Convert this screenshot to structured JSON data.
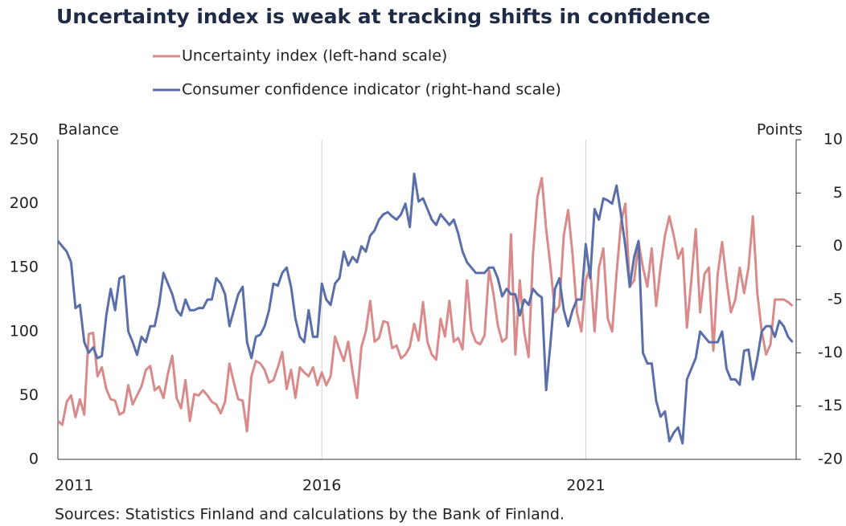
{
  "chart_data": {
    "type": "line",
    "title": "Uncertainty index is weak at tracking shifts in confidence",
    "y_label": "Balance",
    "y2_label": "Points",
    "source": "Sources: Statistics Finland and calculations by the Bank of Finland.",
    "categories": [
      "2011",
      null,
      null,
      null,
      null,
      null,
      null,
      null,
      null,
      null,
      null,
      null,
      null,
      null,
      null,
      null,
      null,
      null,
      null,
      null,
      null,
      null,
      null,
      null,
      null,
      null,
      null,
      null,
      null,
      null,
      null,
      null,
      null,
      null,
      null,
      null,
      null,
      null,
      null,
      null,
      null,
      null,
      null,
      null,
      null,
      null,
      null,
      null,
      null,
      null,
      null,
      null,
      null,
      null,
      null,
      null,
      null,
      null,
      null,
      null,
      "2016",
      null,
      null,
      null,
      null,
      null,
      null,
      null,
      null,
      null,
      null,
      null,
      null,
      null,
      null,
      null,
      null,
      null,
      null,
      null,
      null,
      null,
      null,
      null,
      null,
      null,
      null,
      null,
      null,
      null,
      null,
      null,
      null,
      null,
      null,
      null,
      null,
      null,
      null,
      null,
      null,
      null,
      null,
      null,
      null,
      null,
      null,
      null,
      null,
      null,
      null,
      null,
      null,
      null,
      null,
      null,
      null,
      null,
      null,
      null,
      "2021",
      null,
      null,
      null,
      null,
      null,
      null,
      null,
      null,
      null,
      null,
      null,
      null,
      null,
      null,
      null,
      null,
      null,
      null,
      null,
      null,
      null,
      null,
      null,
      null,
      null,
      null,
      null,
      null,
      null,
      null,
      null,
      null,
      null,
      null,
      null,
      null,
      null,
      null,
      null,
      null,
      null,
      null,
      null,
      null,
      null,
      null,
      null
    ],
    "series": [
      {
        "name": "Uncertainty index (left-hand scale)",
        "color": "#d98a8a",
        "axis": "y",
        "values": [
          30,
          27,
          45,
          50,
          33,
          47,
          35,
          98,
          99,
          65,
          72,
          55,
          47,
          46,
          35,
          37,
          58,
          43,
          50,
          57,
          70,
          73,
          54,
          57,
          48,
          67,
          81,
          48,
          40,
          62,
          30,
          51,
          50,
          54,
          50,
          45,
          43,
          36,
          45,
          75,
          60,
          47,
          46,
          22,
          65,
          77,
          75,
          70,
          60,
          62,
          72,
          84,
          55,
          70,
          48,
          72,
          68,
          65,
          72,
          58,
          68,
          58,
          65,
          96,
          86,
          77,
          92,
          68,
          48,
          88,
          100,
          124,
          92,
          95,
          108,
          107,
          87,
          89,
          79,
          82,
          88,
          106,
          93,
          123,
          92,
          82,
          78,
          110,
          96,
          124,
          92,
          95,
          86,
          140,
          101,
          92,
          90,
          97,
          148,
          130,
          105,
          92,
          95,
          176,
          82,
          140,
          100,
          80,
          160,
          205,
          220,
          180,
          150,
          115,
          120,
          175,
          195,
          160,
          115,
          100,
          140,
          150,
          100,
          150,
          165,
          110,
          100,
          145,
          185,
          200,
          135,
          140,
          170,
          150,
          135,
          165,
          120,
          150,
          175,
          190,
          175,
          157,
          165,
          103,
          140,
          180,
          115,
          145,
          150,
          85,
          145,
          170,
          140,
          115,
          125,
          150,
          130,
          150,
          190,
          130,
          100,
          82,
          90,
          125,
          125,
          125,
          123,
          120
        ]
      },
      {
        "name": "Consumer confidence indicator (right-hand scale)",
        "color": "#5a6eaa",
        "axis": "y2",
        "values": [
          0.5,
          0,
          -0.5,
          -1.5,
          -5.8,
          -5.5,
          -9,
          -10,
          -9.5,
          -10.5,
          -10.3,
          -6.5,
          -4,
          -6,
          -3,
          -2.8,
          -8,
          -9,
          -10.2,
          -8.5,
          -9,
          -7.5,
          -7.5,
          -5.5,
          -2.5,
          -3.5,
          -4.5,
          -6,
          -6.5,
          -5,
          -6,
          -6,
          -5.8,
          -5.8,
          -5,
          -5,
          -3,
          -3.5,
          -4.5,
          -7.5,
          -6,
          -4.5,
          -3.8,
          -9,
          -10.5,
          -8.5,
          -8.3,
          -7.5,
          -6,
          -3.5,
          -3.7,
          -2.5,
          -2,
          -3.8,
          -6.8,
          -8.5,
          -9,
          -6,
          -8.5,
          -8.5,
          -3.5,
          -5,
          -5.5,
          -3.5,
          -3,
          -0.5,
          -1.8,
          -1,
          -1.5,
          0,
          -0.5,
          1,
          1.5,
          2.5,
          3,
          3.2,
          2.8,
          2.5,
          3,
          4,
          1.8,
          6.8,
          4.2,
          4.5,
          3.5,
          2.5,
          2,
          3,
          2.5,
          2,
          2.5,
          1.2,
          -0.5,
          -1.5,
          -2,
          -2.5,
          -2.5,
          -2.5,
          -2,
          -2,
          -3,
          -4.7,
          -4,
          -4.5,
          -4.5,
          -6.5,
          -5,
          -5.5,
          -4,
          -4.5,
          -4.8,
          -13.5,
          -9,
          -4,
          -3,
          -6,
          -7.5,
          -6,
          -5,
          -5,
          0.2,
          -3,
          3.5,
          2.5,
          4.5,
          4.3,
          4,
          5.7,
          3,
          0,
          -3.8,
          -1,
          0.5,
          -10,
          -11,
          -11,
          -14.5,
          -16,
          -15.5,
          -18.3,
          -17.5,
          -17,
          -18.5,
          -12.5,
          -11.5,
          -10.5,
          -8,
          -8.5,
          -9,
          -9,
          -9,
          -8,
          -11.5,
          -12.5,
          -12.5,
          -13,
          -9.8,
          -9.7,
          -12.5,
          -10.5,
          -8,
          -7.5,
          -7.5,
          -8.5,
          -7,
          -7.5,
          -8.5,
          -9
        ]
      }
    ],
    "ylim": [
      0,
      250
    ],
    "yticks": [
      0,
      50,
      100,
      150,
      200,
      250
    ],
    "y2lim": [
      -20,
      10
    ],
    "y2ticks": [
      -20,
      -15,
      -10,
      -5,
      0,
      5,
      10
    ],
    "grid": true
  }
}
